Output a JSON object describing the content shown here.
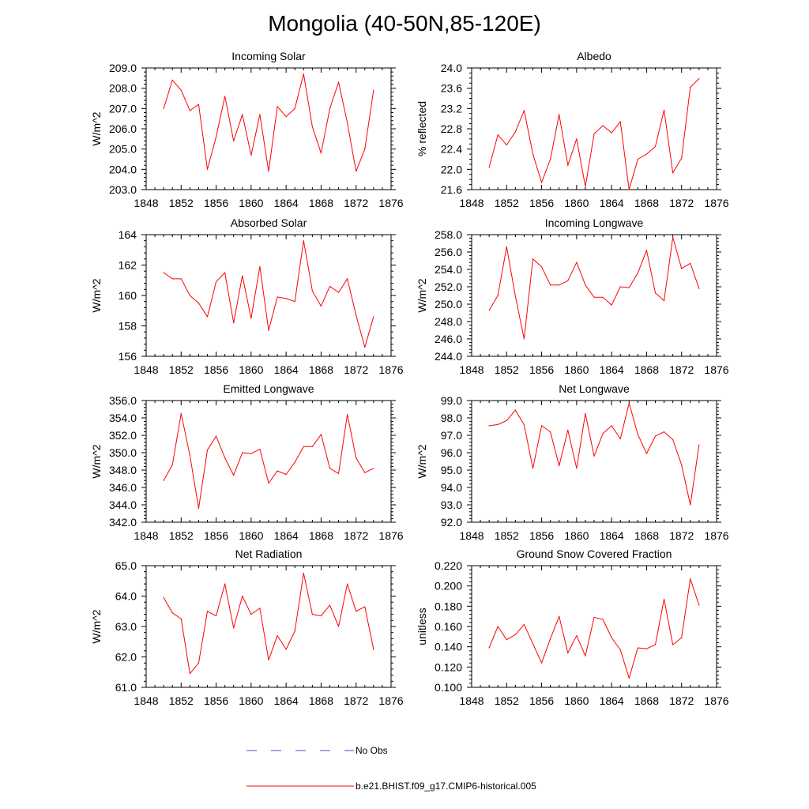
{
  "title": "Mongolia (40-50N,85-120E)",
  "legend": {
    "obs_label": "No Obs",
    "obs_color": "#4a4ab8",
    "model_label": "b.e21.BHIST.f09_g17.CMIP6-historical.005",
    "model_color": "#ff0000"
  },
  "chart_data": [
    {
      "type": "line",
      "title": "Incoming Solar",
      "xlabel": "",
      "ylabel": "W/m^2",
      "xlim": [
        1848,
        1876
      ],
      "ylim": [
        203,
        209
      ],
      "xticks": [
        1848,
        1852,
        1856,
        1860,
        1864,
        1868,
        1872,
        1876
      ],
      "xtick_labels": [
        "1848",
        "1852",
        "1856",
        "1860",
        "1864",
        "1868",
        "1872",
        "1876"
      ],
      "yticks": [
        203,
        204,
        205,
        206,
        207,
        208,
        209
      ],
      "ytick_labels": [
        "203.0",
        "204.0",
        "205.0",
        "206.0",
        "207.0",
        "208.0",
        "209.0"
      ],
      "yminor": 0.2,
      "grid": false,
      "color": "#ff0000",
      "x": [
        1850,
        1851,
        1852,
        1853,
        1854,
        1855,
        1856,
        1857,
        1858,
        1859,
        1860,
        1861,
        1862,
        1863,
        1864,
        1865,
        1866,
        1867,
        1868,
        1869,
        1870,
        1871,
        1872,
        1873,
        1874
      ],
      "values": [
        207.0,
        208.4,
        207.9,
        206.9,
        207.2,
        204.0,
        205.6,
        207.6,
        205.4,
        206.7,
        204.7,
        206.7,
        203.9,
        207.1,
        206.6,
        207.0,
        208.7,
        206.1,
        204.8,
        207.0,
        208.3,
        206.3,
        203.9,
        205.0,
        207.9
      ]
    },
    {
      "type": "line",
      "title": "Albedo",
      "xlabel": "",
      "ylabel": "% reflected",
      "xlim": [
        1848,
        1876
      ],
      "ylim": [
        21.6,
        24.0
      ],
      "xticks": [
        1848,
        1852,
        1856,
        1860,
        1864,
        1868,
        1872,
        1876
      ],
      "xtick_labels": [
        "1848",
        "1852",
        "1856",
        "1860",
        "1864",
        "1868",
        "1872",
        "1876"
      ],
      "yticks": [
        21.6,
        22.0,
        22.4,
        22.8,
        23.2,
        23.6,
        24.0
      ],
      "ytick_labels": [
        "21.6",
        "22.0",
        "22.4",
        "22.8",
        "23.2",
        "23.6",
        "24.0"
      ],
      "yminor": 0.1,
      "grid": false,
      "color": "#ff0000",
      "x": [
        1850,
        1851,
        1852,
        1853,
        1854,
        1855,
        1856,
        1857,
        1858,
        1859,
        1860,
        1861,
        1862,
        1863,
        1864,
        1865,
        1866,
        1867,
        1868,
        1869,
        1870,
        1871,
        1872,
        1873,
        1874
      ],
      "values": [
        22.04,
        22.68,
        22.48,
        22.74,
        23.16,
        22.3,
        21.74,
        22.2,
        23.08,
        22.08,
        22.6,
        21.66,
        22.7,
        22.86,
        22.72,
        22.94,
        21.6,
        22.2,
        22.3,
        22.45,
        23.17,
        21.93,
        22.22,
        23.62,
        23.79
      ]
    },
    {
      "type": "line",
      "title": "Absorbed Solar",
      "xlabel": "",
      "ylabel": "W/m^2",
      "xlim": [
        1848,
        1876
      ],
      "ylim": [
        156,
        164
      ],
      "xticks": [
        1848,
        1852,
        1856,
        1860,
        1864,
        1868,
        1872,
        1876
      ],
      "xtick_labels": [
        "1848",
        "1852",
        "1856",
        "1860",
        "1864",
        "1868",
        "1872",
        "1876"
      ],
      "yticks": [
        156,
        158,
        160,
        162,
        164
      ],
      "ytick_labels": [
        "156",
        "158",
        "160",
        "162",
        "164"
      ],
      "yminor": 0.4,
      "grid": false,
      "color": "#ff0000",
      "x": [
        1850,
        1851,
        1852,
        1853,
        1854,
        1855,
        1856,
        1857,
        1858,
        1859,
        1860,
        1861,
        1862,
        1863,
        1864,
        1865,
        1866,
        1867,
        1868,
        1869,
        1870,
        1871,
        1872,
        1873,
        1874
      ],
      "values": [
        161.5,
        161.1,
        161.1,
        160.0,
        159.5,
        158.6,
        160.9,
        161.5,
        158.2,
        161.3,
        158.5,
        161.9,
        157.7,
        159.9,
        159.8,
        159.6,
        163.6,
        160.3,
        159.3,
        160.6,
        160.2,
        161.1,
        158.7,
        156.6,
        158.6
      ]
    },
    {
      "type": "line",
      "title": "Incoming Longwave",
      "xlabel": "",
      "ylabel": "W/m^2",
      "xlim": [
        1848,
        1876
      ],
      "ylim": [
        244,
        258
      ],
      "xticks": [
        1848,
        1852,
        1856,
        1860,
        1864,
        1868,
        1872,
        1876
      ],
      "xtick_labels": [
        "1848",
        "1852",
        "1856",
        "1860",
        "1864",
        "1868",
        "1872",
        "1876"
      ],
      "yticks": [
        244,
        246,
        248,
        250,
        252,
        254,
        256,
        258
      ],
      "ytick_labels": [
        "244.0",
        "246.0",
        "248.0",
        "250.0",
        "252.0",
        "254.0",
        "256.0",
        "258.0"
      ],
      "yminor": 0.4,
      "grid": false,
      "color": "#ff0000",
      "x": [
        1850,
        1851,
        1852,
        1853,
        1854,
        1855,
        1856,
        1857,
        1858,
        1859,
        1860,
        1861,
        1862,
        1863,
        1864,
        1865,
        1866,
        1867,
        1868,
        1869,
        1870,
        1871,
        1872,
        1873,
        1874
      ],
      "values": [
        249.3,
        251.0,
        256.6,
        250.9,
        246.0,
        255.2,
        254.3,
        252.2,
        252.2,
        252.7,
        254.8,
        252.2,
        250.8,
        250.8,
        249.9,
        252.0,
        251.9,
        253.6,
        256.2,
        251.3,
        250.4,
        257.7,
        254.1,
        254.7,
        251.8
      ]
    },
    {
      "type": "line",
      "title": "Emitted Longwave",
      "xlabel": "",
      "ylabel": "W/m^2",
      "xlim": [
        1848,
        1876
      ],
      "ylim": [
        342,
        356
      ],
      "xticks": [
        1848,
        1852,
        1856,
        1860,
        1864,
        1868,
        1872,
        1876
      ],
      "xtick_labels": [
        "1848",
        "1852",
        "1856",
        "1860",
        "1864",
        "1868",
        "1872",
        "1876"
      ],
      "yticks": [
        342,
        344,
        346,
        348,
        350,
        352,
        354,
        356
      ],
      "ytick_labels": [
        "342.0",
        "344.0",
        "346.0",
        "348.0",
        "350.0",
        "352.0",
        "354.0",
        "356.0"
      ],
      "yminor": 0.4,
      "grid": false,
      "color": "#ff0000",
      "x": [
        1850,
        1851,
        1852,
        1853,
        1854,
        1855,
        1856,
        1857,
        1858,
        1859,
        1860,
        1861,
        1862,
        1863,
        1864,
        1865,
        1866,
        1867,
        1868,
        1869,
        1870,
        1871,
        1872,
        1873,
        1874
      ],
      "values": [
        346.8,
        348.6,
        354.5,
        349.7,
        343.6,
        350.3,
        351.9,
        349.4,
        347.4,
        350.0,
        349.9,
        350.4,
        346.5,
        347.9,
        347.5,
        348.9,
        350.7,
        350.7,
        352.1,
        348.2,
        347.6,
        354.4,
        349.4,
        347.7,
        348.2
      ]
    },
    {
      "type": "line",
      "title": "Net Longwave",
      "xlabel": "",
      "ylabel": "W/m^2",
      "xlim": [
        1848,
        1876
      ],
      "ylim": [
        92,
        99
      ],
      "xticks": [
        1848,
        1852,
        1856,
        1860,
        1864,
        1868,
        1872,
        1876
      ],
      "xtick_labels": [
        "1848",
        "1852",
        "1856",
        "1860",
        "1864",
        "1868",
        "1872",
        "1876"
      ],
      "yticks": [
        92,
        93,
        94,
        95,
        96,
        97,
        98,
        99
      ],
      "ytick_labels": [
        "92.0",
        "93.0",
        "94.0",
        "95.0",
        "96.0",
        "97.0",
        "98.0",
        "99.0"
      ],
      "yminor": 0.2,
      "grid": false,
      "color": "#ff0000",
      "x": [
        1850,
        1851,
        1852,
        1853,
        1854,
        1855,
        1856,
        1857,
        1858,
        1859,
        1860,
        1861,
        1862,
        1863,
        1864,
        1865,
        1866,
        1867,
        1868,
        1869,
        1870,
        1871,
        1872,
        1873,
        1874
      ],
      "values": [
        97.55,
        97.62,
        97.85,
        98.45,
        97.6,
        95.1,
        97.55,
        97.2,
        95.25,
        97.3,
        95.1,
        98.25,
        95.8,
        97.1,
        97.55,
        96.8,
        98.85,
        97.05,
        95.95,
        96.95,
        97.2,
        96.75,
        95.3,
        93.0,
        96.45
      ]
    },
    {
      "type": "line",
      "title": "Net Radiation",
      "xlabel": "",
      "ylabel": "W/m^2",
      "xlim": [
        1848,
        1876
      ],
      "ylim": [
        61,
        65
      ],
      "xticks": [
        1848,
        1852,
        1856,
        1860,
        1864,
        1868,
        1872,
        1876
      ],
      "xtick_labels": [
        "1848",
        "1852",
        "1856",
        "1860",
        "1864",
        "1868",
        "1872",
        "1876"
      ],
      "yticks": [
        61,
        62,
        63,
        64,
        65
      ],
      "ytick_labels": [
        "61.0",
        "62.0",
        "63.0",
        "64.0",
        "65.0"
      ],
      "yminor": 0.2,
      "grid": false,
      "color": "#ff0000",
      "x": [
        1850,
        1851,
        1852,
        1853,
        1854,
        1855,
        1856,
        1857,
        1858,
        1859,
        1860,
        1861,
        1862,
        1863,
        1864,
        1865,
        1866,
        1867,
        1868,
        1869,
        1870,
        1871,
        1872,
        1873,
        1874
      ],
      "values": [
        63.95,
        63.45,
        63.25,
        61.45,
        61.8,
        63.5,
        63.35,
        64.4,
        62.95,
        64.0,
        63.4,
        63.6,
        61.9,
        62.7,
        62.25,
        62.85,
        64.75,
        63.4,
        63.35,
        63.7,
        63.0,
        64.4,
        63.5,
        63.65,
        62.25
      ]
    },
    {
      "type": "line",
      "title": "Ground Snow Covered Fraction",
      "xlabel": "",
      "ylabel": "unitless",
      "xlim": [
        1848,
        1876
      ],
      "ylim": [
        0.1,
        0.22
      ],
      "xticks": [
        1848,
        1852,
        1856,
        1860,
        1864,
        1868,
        1872,
        1876
      ],
      "xtick_labels": [
        "1848",
        "1852",
        "1856",
        "1860",
        "1864",
        "1868",
        "1872",
        "1876"
      ],
      "yticks": [
        0.1,
        0.12,
        0.14,
        0.16,
        0.18,
        0.2,
        0.22
      ],
      "ytick_labels": [
        "0.100",
        "0.120",
        "0.140",
        "0.160",
        "0.180",
        "0.200",
        "0.220"
      ],
      "yminor": 0.004,
      "grid": false,
      "color": "#ff0000",
      "x": [
        1850,
        1851,
        1852,
        1853,
        1854,
        1855,
        1856,
        1857,
        1858,
        1859,
        1860,
        1861,
        1862,
        1863,
        1864,
        1865,
        1866,
        1867,
        1868,
        1869,
        1870,
        1871,
        1872,
        1873,
        1874
      ],
      "values": [
        0.139,
        0.16,
        0.147,
        0.152,
        0.162,
        0.143,
        0.124,
        0.148,
        0.17,
        0.134,
        0.151,
        0.131,
        0.169,
        0.167,
        0.149,
        0.137,
        0.109,
        0.139,
        0.138,
        0.142,
        0.187,
        0.142,
        0.149,
        0.207,
        0.181
      ]
    }
  ]
}
